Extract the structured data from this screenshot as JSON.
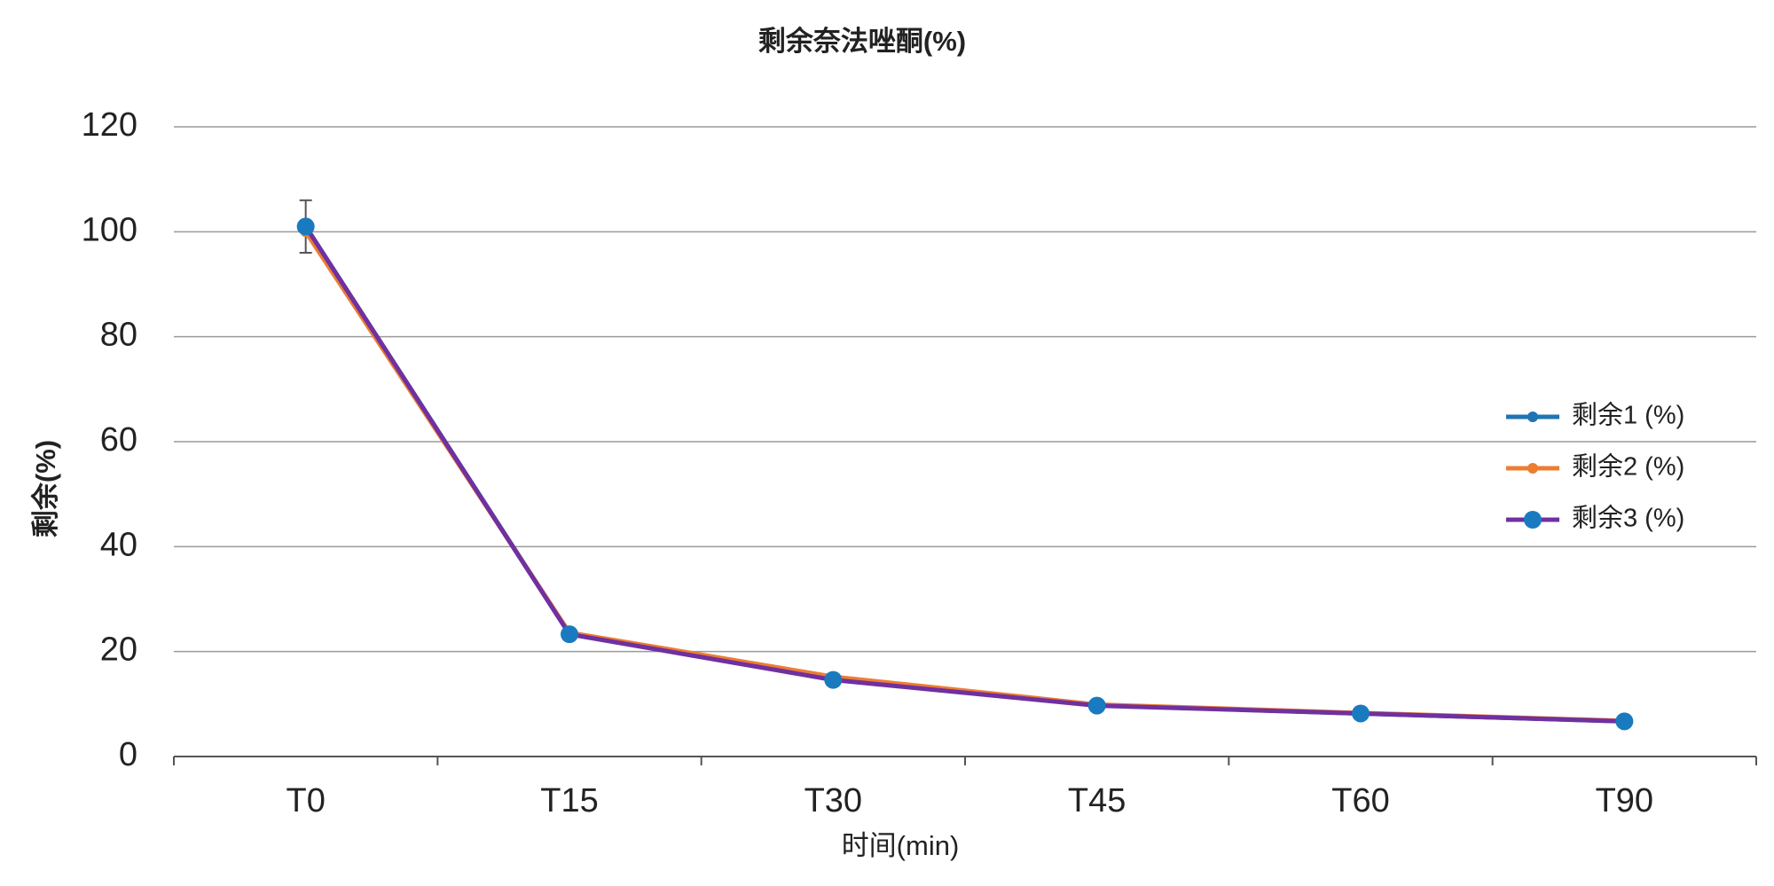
{
  "chart_data": {
    "type": "line",
    "title": "剩余奈法唑酮(%)",
    "x_label": "时间(min)",
    "y_label": "剩余(%)",
    "categories": [
      "T0",
      "T15",
      "T30",
      "T45",
      "T60",
      "T90"
    ],
    "series": [
      {
        "name": "剩余1 (%)",
        "color": "#1f74b4",
        "marker_color": "#1f74b4",
        "values": [
          101,
          23.4,
          14.7,
          9.8,
          8.2,
          6.7
        ]
      },
      {
        "name": "剩余2 (%)",
        "color": "#ed7d31",
        "marker_color": "#ed7d31",
        "values": [
          100,
          23.6,
          15.2,
          9.9,
          8.3,
          6.8
        ]
      },
      {
        "name": "剩余3 (%)",
        "color": "#7030a0",
        "marker_color": "#1a7ac0",
        "values": [
          101,
          23.3,
          14.6,
          9.7,
          8.2,
          6.7
        ],
        "errors": [
          5,
          null,
          null,
          null,
          null,
          null
        ]
      }
    ],
    "ylim": [
      0,
      120
    ],
    "yticks": [
      0,
      20,
      40,
      60,
      80,
      100,
      120
    ],
    "grid": true,
    "legend": "right"
  }
}
